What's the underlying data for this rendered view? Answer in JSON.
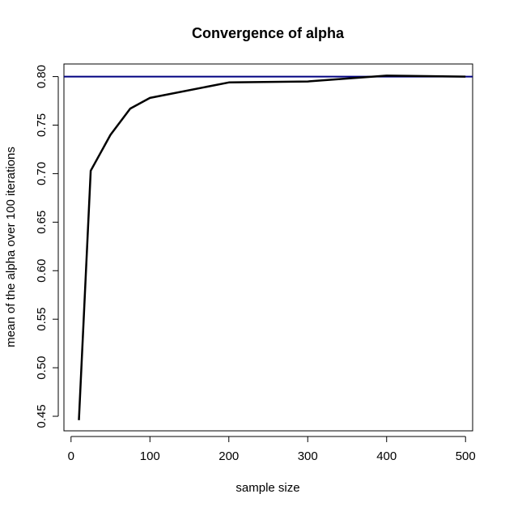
{
  "chart_data": {
    "type": "line",
    "title": "Convergence of alpha",
    "xlabel": "sample size",
    "ylabel": "mean of the alpha over 100 iterations",
    "xlim": [
      -9,
      509
    ],
    "ylim": [
      0.435,
      0.813
    ],
    "xticks": [
      0,
      100,
      200,
      300,
      400,
      500
    ],
    "yticks": [
      0.45,
      0.5,
      0.55,
      0.6,
      0.65,
      0.7,
      0.75,
      0.8
    ],
    "ytick_labels": [
      "0.45",
      "0.50",
      "0.55",
      "0.60",
      "0.65",
      "0.70",
      "0.75",
      "0.80"
    ],
    "grid": false,
    "series": [
      {
        "color": "#000000",
        "x": [
          10,
          25,
          50,
          75,
          100,
          200,
          300,
          400,
          500
        ],
        "y": [
          0.446,
          0.703,
          0.74,
          0.767,
          0.778,
          0.794,
          0.795,
          0.801,
          0.8
        ]
      }
    ],
    "reference_line": {
      "y": 0.8,
      "color": "#000080"
    }
  }
}
